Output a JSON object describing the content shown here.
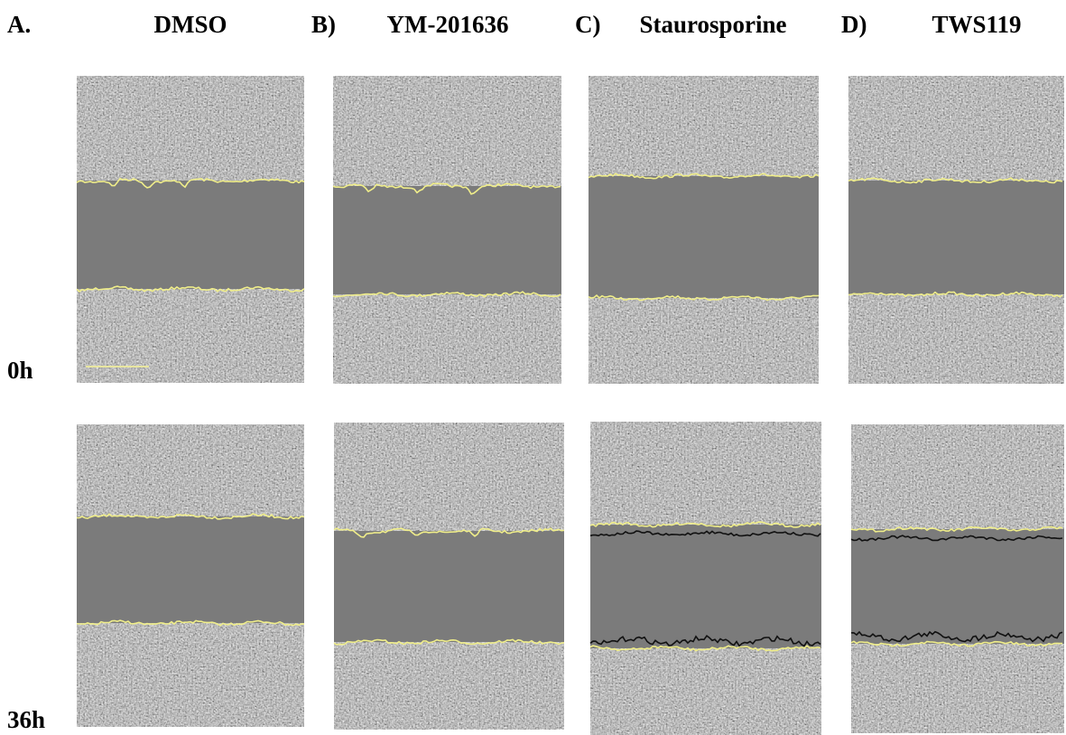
{
  "panels": [
    {
      "letter": "A.",
      "title": "DMSO"
    },
    {
      "letter": "B)",
      "title": "YM-201636"
    },
    {
      "letter": "C)",
      "title": "Staurosporine"
    },
    {
      "letter": "D)",
      "title": "TWS119"
    }
  ],
  "rows": [
    {
      "label": "0h"
    },
    {
      "label": "36h"
    }
  ]
}
